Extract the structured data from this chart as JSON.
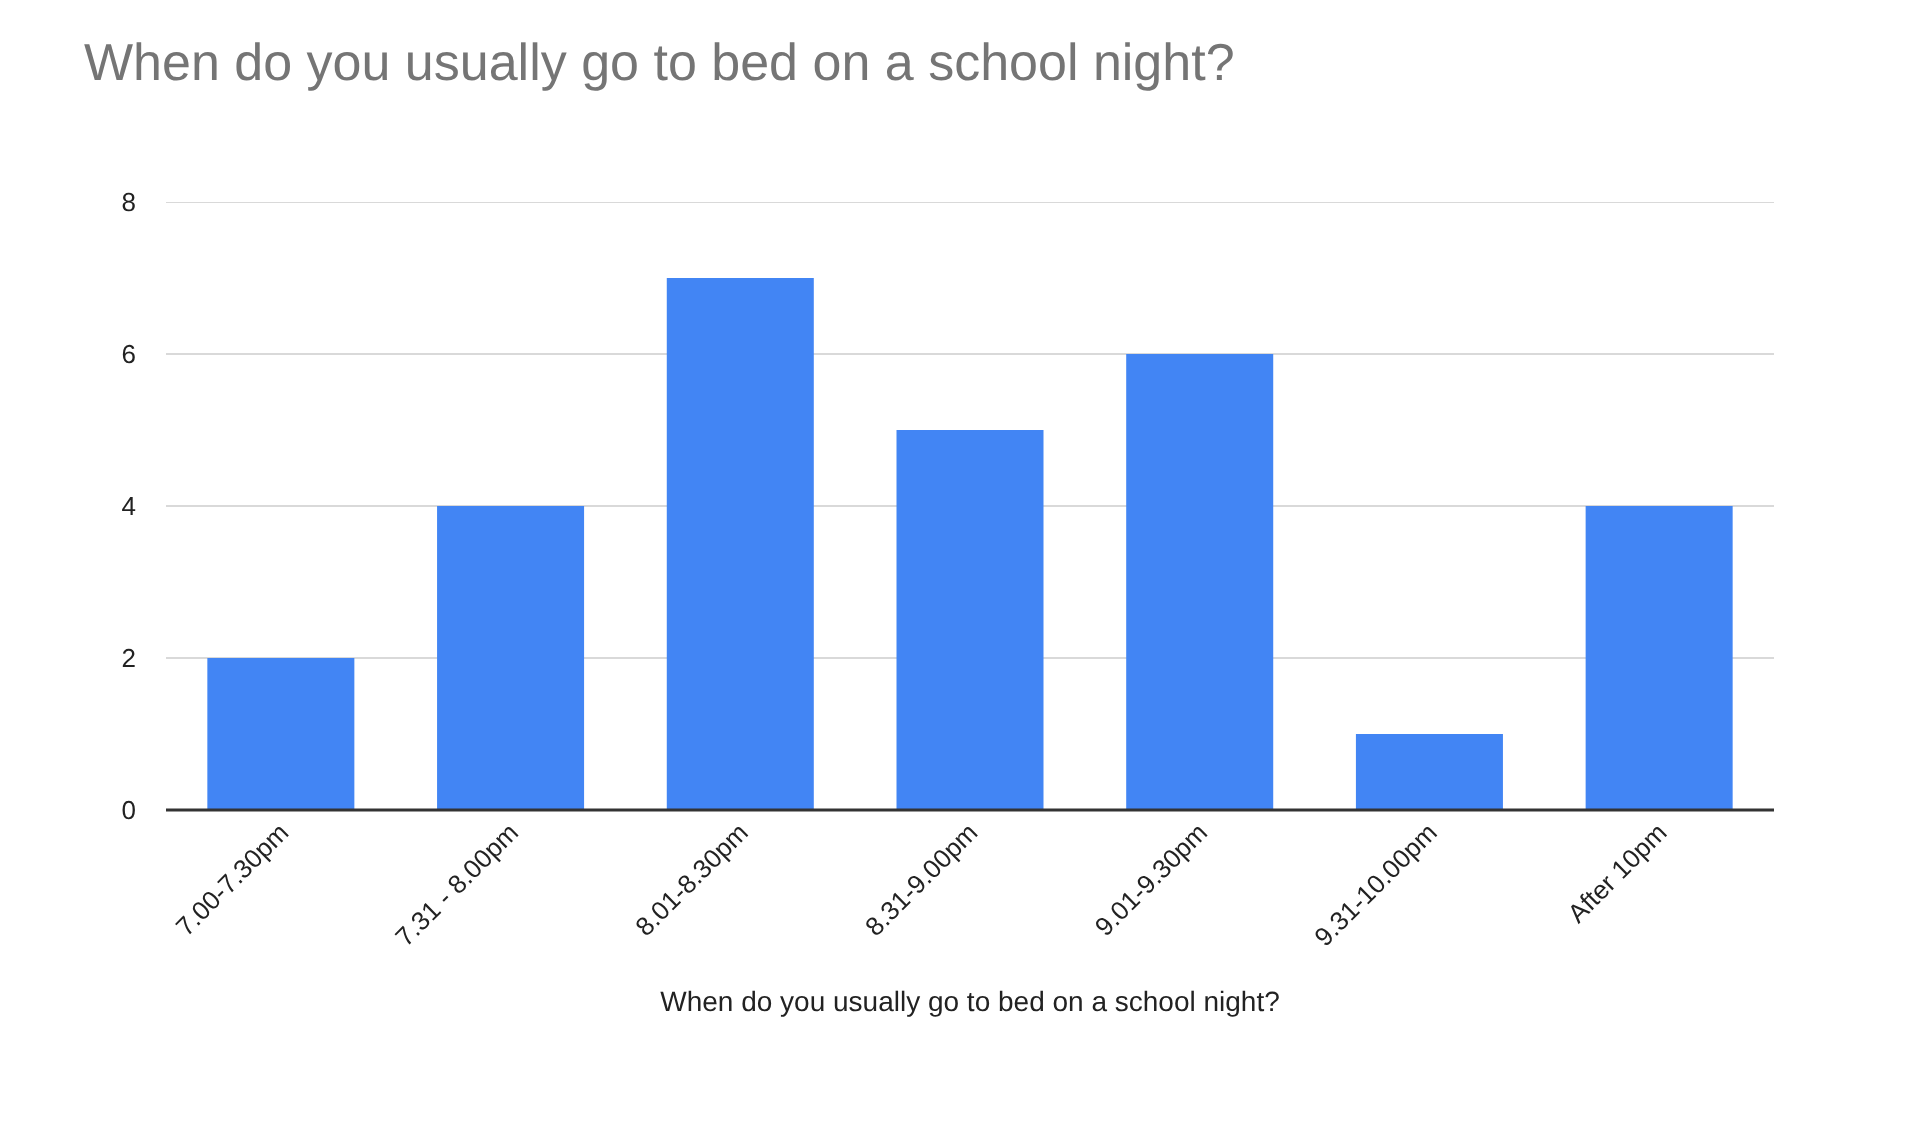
{
  "chart_data": {
    "type": "bar",
    "title": "When do you usually go to bed on a school night?",
    "xlabel": "When do you usually go to bed on a school night?",
    "categories": [
      "7.00-7.30pm",
      "7.31 - 8.00pm",
      "8.01-8.30pm",
      "8.31-9.00pm",
      "9.01-9.30pm",
      "9.31-10.00pm",
      "After 10pm"
    ],
    "values": [
      2,
      4,
      7,
      5,
      6,
      1,
      4
    ],
    "color": "#4285f4",
    "ylim": [
      0,
      8
    ],
    "yticks": [
      0,
      2,
      4,
      6,
      8
    ],
    "grid": "y",
    "legend": false
  }
}
